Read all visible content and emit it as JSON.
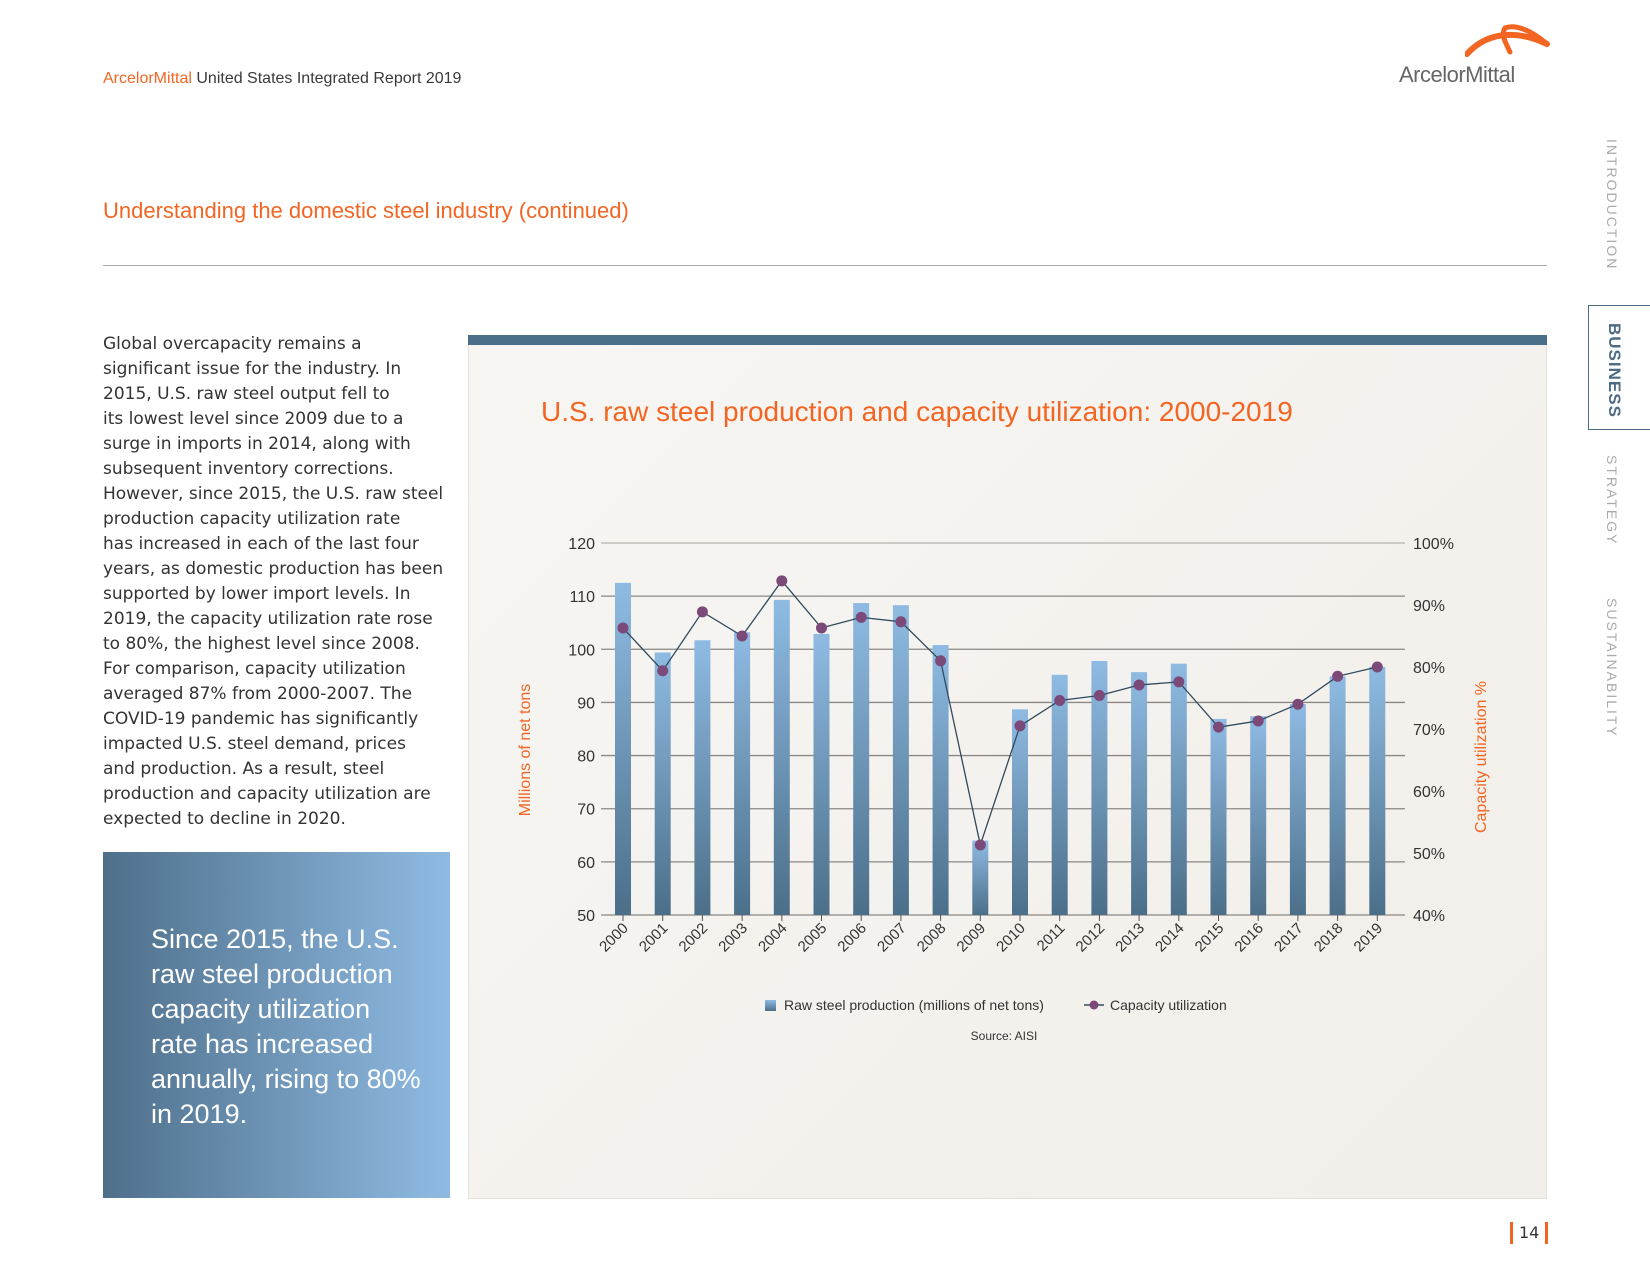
{
  "header": {
    "brand": "ArcelorMittal",
    "report_title": "United States Integrated Report 2019",
    "logo_text": "ArcelorMittal",
    "logo_icon": "arcelormittal-swoosh-icon"
  },
  "section_title": "Understanding the domestic steel industry (continued)",
  "side_nav": {
    "items": [
      {
        "label": "INTRODUCTION",
        "active": false
      },
      {
        "label": "BUSINESS",
        "active": true
      },
      {
        "label": "STRATEGY",
        "active": false
      },
      {
        "label": "SUSTAINABILITY",
        "active": false
      }
    ]
  },
  "body_text": "Global overcapacity remains a\nsignificant issue for the industry. In\n2015, U.S. raw steel output fell to\nits lowest level since 2009 due to a\nsurge in imports in 2014, along with\nsubsequent inventory corrections.\nHowever, since 2015, the U.S. raw steel\nproduction capacity utilization rate\nhas increased in each of the last four\nyears, as domestic production has been\nsupported by lower import levels. In\n2019, the capacity utilization rate rose\nto 80%, the highest level since 2008.\nFor comparison, capacity utilization\naveraged 87% from 2000-2007. The\nCOVID-19 pandemic has significantly\nimpacted U.S. steel demand, prices\nand production. As a result, steel\nproduction and capacity utilization are\nexpected to decline in 2020.",
  "callout_text": "Since 2015, the U.S.\nraw steel production\ncapacity utilization\nrate has increased\nannually, rising to 80%\nin 2019.",
  "page_number": "14",
  "colors": {
    "accent": "#f26522",
    "navy": "#4b6f89",
    "bar_top": "#8fbbe3",
    "bar_bottom": "#4b6f89",
    "marker": "#7b4a78",
    "line": "#2f4a5e"
  },
  "chart_data": {
    "type": "bar+line",
    "title": "U.S. raw steel production and capacity utilization: 2000-2019",
    "categories": [
      "2000",
      "2001",
      "2002",
      "2003",
      "2004",
      "2005",
      "2006",
      "2007",
      "2008",
      "2009",
      "2010",
      "2011",
      "2012",
      "2013",
      "2014",
      "2015",
      "2016",
      "2017",
      "2018",
      "2019"
    ],
    "series": [
      {
        "name": "Raw steel production (millions of net tons)",
        "type": "bar",
        "axis": "left",
        "values": [
          112.5,
          99.4,
          101.7,
          103.2,
          109.3,
          102.9,
          108.7,
          108.3,
          100.8,
          64.0,
          88.7,
          95.2,
          97.8,
          95.7,
          97.3,
          86.9,
          87.4,
          89.7,
          94.9,
          96.7
        ]
      },
      {
        "name": "Capacity utilization",
        "type": "line",
        "axis": "right",
        "values": [
          86.3,
          79.4,
          88.9,
          85.0,
          93.9,
          86.3,
          88.0,
          87.3,
          81.0,
          51.3,
          70.5,
          74.6,
          75.4,
          77.1,
          77.6,
          70.3,
          71.3,
          74.0,
          78.5,
          80.0
        ]
      }
    ],
    "ylabel": "Millions of net tons",
    "ylabel_right": "Capacity utilization %",
    "ylim": [
      50,
      120
    ],
    "ylim_right": [
      40,
      100
    ],
    "yticks": [
      "50",
      "60",
      "70",
      "80",
      "90",
      "100",
      "110",
      "120"
    ],
    "yticks_right": [
      "40%",
      "50%",
      "60%",
      "70%",
      "80%",
      "90%",
      "100%"
    ],
    "grid": true,
    "legend": "bottom",
    "source": "Source: AISI"
  }
}
